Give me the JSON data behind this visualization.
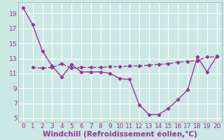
{
  "xlabel": "Windchill (Refroidissement éolien,°C)",
  "background_color": "#cce8e4",
  "grid_color": "#ffffff",
  "line_color": "#993399",
  "xlim": [
    -0.5,
    20.5
  ],
  "ylim": [
    4.5,
    20.5
  ],
  "xticks": [
    0,
    1,
    2,
    3,
    4,
    5,
    6,
    7,
    8,
    9,
    10,
    11,
    12,
    13,
    14,
    15,
    16,
    17,
    18,
    19,
    20
  ],
  "yticks": [
    5,
    7,
    9,
    11,
    13,
    15,
    17,
    19
  ],
  "curve1_x": [
    0,
    1,
    2,
    3,
    4,
    5,
    6,
    7,
    8,
    9,
    10,
    11,
    12,
    13,
    14,
    15,
    16,
    17,
    18,
    19,
    20
  ],
  "curve1_y": [
    19.8,
    17.5,
    14.0,
    12.0,
    10.5,
    12.2,
    11.2,
    11.2,
    11.2,
    11.0,
    10.3,
    10.2,
    6.8,
    5.5,
    5.5,
    6.3,
    7.5,
    8.8,
    13.2,
    11.2,
    13.3
  ],
  "curve2_x": [
    1,
    2,
    3,
    4,
    5,
    6,
    7,
    8,
    9,
    10,
    11,
    12,
    13,
    14,
    15,
    16,
    17,
    18,
    19,
    20
  ],
  "curve2_y": [
    11.8,
    11.7,
    11.8,
    12.3,
    11.7,
    11.8,
    11.8,
    11.8,
    11.9,
    11.9,
    12.0,
    12.0,
    12.1,
    12.2,
    12.3,
    12.5,
    12.6,
    12.7,
    13.2,
    13.2
  ],
  "tick_fontsize": 6.5,
  "label_fontsize": 7.5
}
